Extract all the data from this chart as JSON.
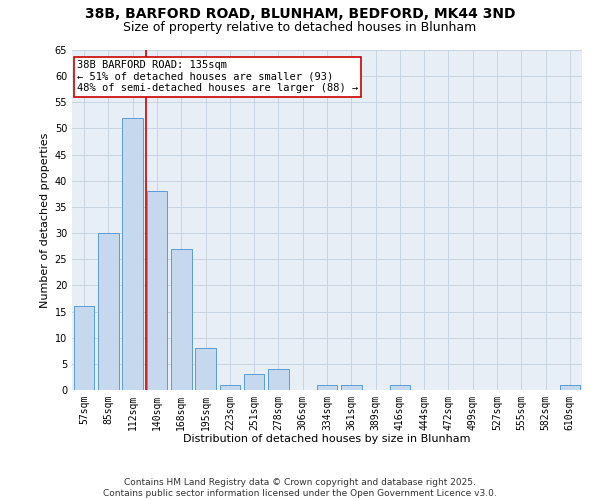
{
  "title": "38B, BARFORD ROAD, BLUNHAM, BEDFORD, MK44 3ND",
  "subtitle": "Size of property relative to detached houses in Blunham",
  "xlabel": "Distribution of detached houses by size in Blunham",
  "ylabel": "Number of detached properties",
  "categories": [
    "57sqm",
    "85sqm",
    "112sqm",
    "140sqm",
    "168sqm",
    "195sqm",
    "223sqm",
    "251sqm",
    "278sqm",
    "306sqm",
    "334sqm",
    "361sqm",
    "389sqm",
    "416sqm",
    "444sqm",
    "472sqm",
    "499sqm",
    "527sqm",
    "555sqm",
    "582sqm",
    "610sqm"
  ],
  "values": [
    16,
    30,
    52,
    38,
    27,
    8,
    1,
    3,
    4,
    0,
    1,
    1,
    0,
    1,
    0,
    0,
    0,
    0,
    0,
    0,
    1
  ],
  "bar_color": "#c5d8ed",
  "bar_edge_color": "#5b9bd5",
  "grid_color": "#c8d4e0",
  "bg_color": "#e8eef5",
  "annotation_box_color": "#cc0000",
  "annotation_text": "38B BARFORD ROAD: 135sqm\n← 51% of detached houses are smaller (93)\n48% of semi-detached houses are larger (88) →",
  "vline_x": 2.56,
  "vline_color": "#cc0000",
  "ylim": [
    0,
    65
  ],
  "yticks": [
    0,
    5,
    10,
    15,
    20,
    25,
    30,
    35,
    40,
    45,
    50,
    55,
    60,
    65
  ],
  "footer": "Contains HM Land Registry data © Crown copyright and database right 2025.\nContains public sector information licensed under the Open Government Licence v3.0.",
  "title_fontsize": 10,
  "subtitle_fontsize": 9,
  "xlabel_fontsize": 8,
  "ylabel_fontsize": 8,
  "tick_fontsize": 7,
  "annotation_fontsize": 7.5,
  "footer_fontsize": 6.5
}
